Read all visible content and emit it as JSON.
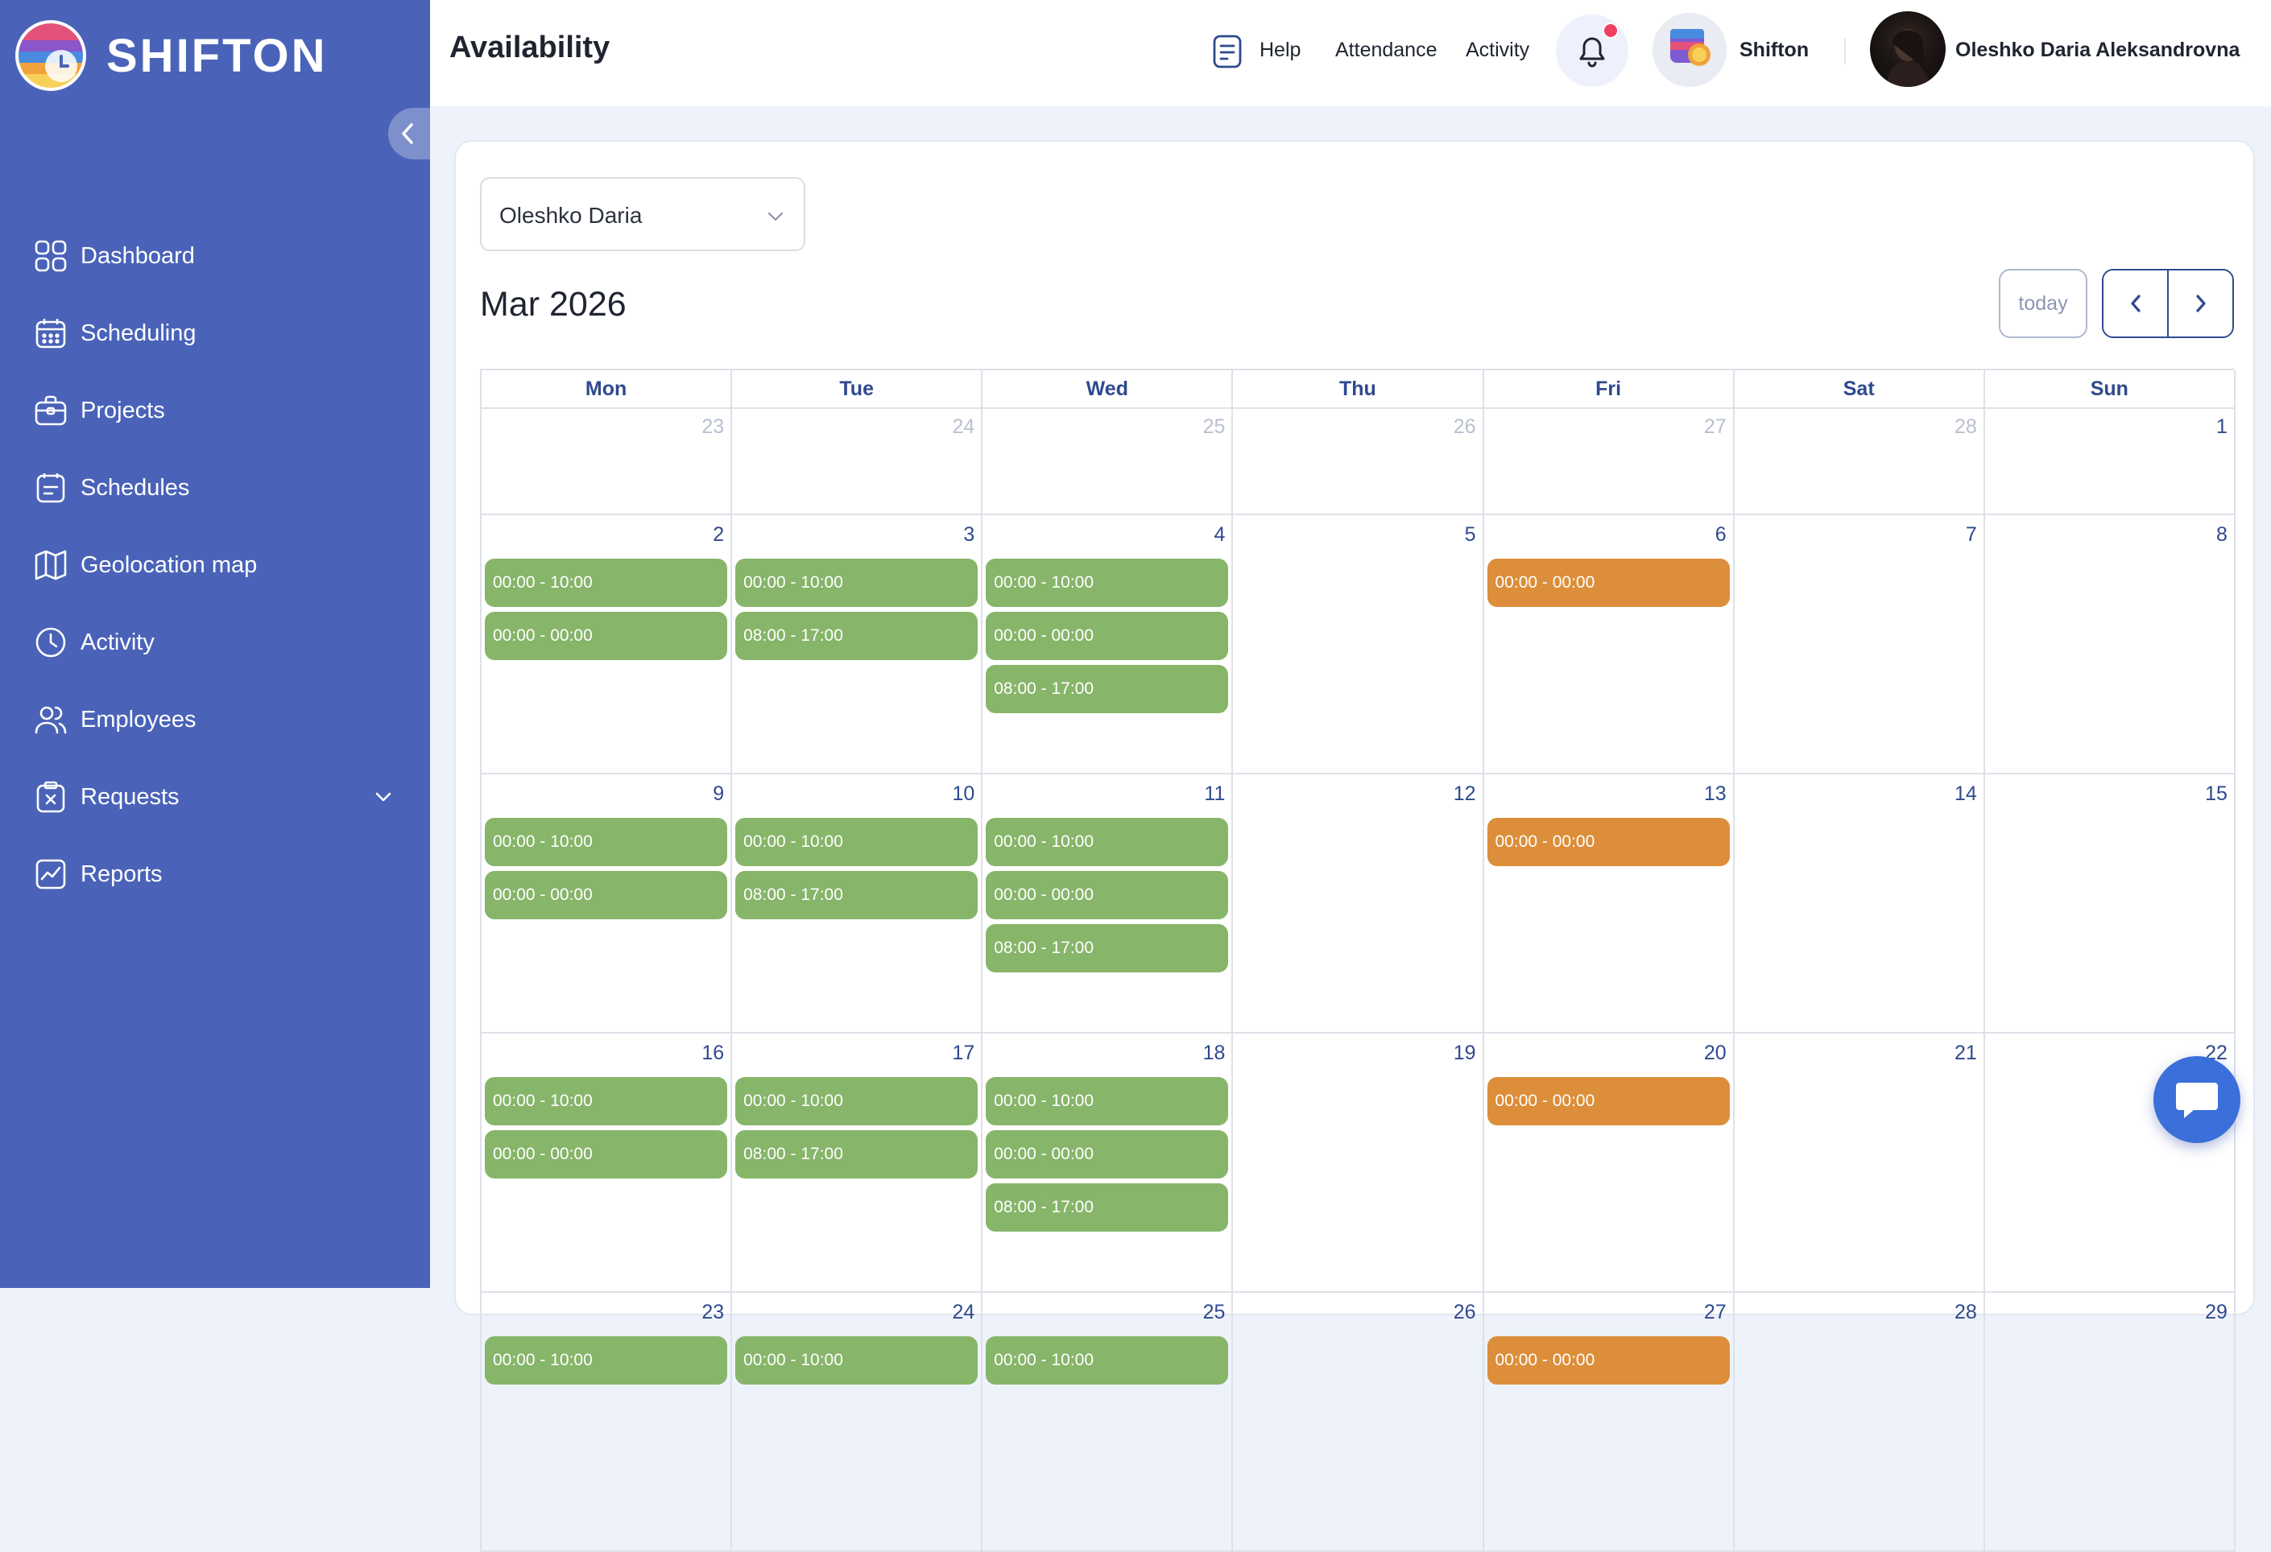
{
  "app": {
    "logo_text": "SHIFTON"
  },
  "colors": {
    "sidebar_bg": "#4a63b8",
    "accent": "#2e4a8e",
    "event_green": "#87b56a",
    "event_orange": "#dc8e3a",
    "notification_dot": "#ef4060"
  },
  "sidebar": {
    "items": [
      {
        "label": "Dashboard",
        "icon": "dashboard-icon"
      },
      {
        "label": "Scheduling",
        "icon": "calendar-grid-icon"
      },
      {
        "label": "Projects",
        "icon": "briefcase-icon"
      },
      {
        "label": "Schedules",
        "icon": "schedule-list-icon"
      },
      {
        "label": "Geolocation map",
        "icon": "map-icon"
      },
      {
        "label": "Activity",
        "icon": "clock-icon"
      },
      {
        "label": "Employees",
        "icon": "users-icon"
      },
      {
        "label": "Requests",
        "icon": "request-icon",
        "expandable": true
      },
      {
        "label": "Reports",
        "icon": "chart-icon"
      }
    ]
  },
  "header": {
    "title": "Availability",
    "help_label": "Help",
    "attendance_label": "Attendance",
    "activity_label": "Activity",
    "company_name": "Shifton",
    "user_name": "Oleshko Daria Aleksandrovna"
  },
  "toolbar": {
    "employee_selected": "Oleshko Daria",
    "month_title": "Mar 2026",
    "today_label": "today"
  },
  "calendar": {
    "day_names": [
      "Mon",
      "Tue",
      "Wed",
      "Thu",
      "Fri",
      "Sat",
      "Sun"
    ],
    "weeks": [
      {
        "days": [
          {
            "num": "23",
            "other": true,
            "events": []
          },
          {
            "num": "24",
            "other": true,
            "events": []
          },
          {
            "num": "25",
            "other": true,
            "events": []
          },
          {
            "num": "26",
            "other": true,
            "events": []
          },
          {
            "num": "27",
            "other": true,
            "events": []
          },
          {
            "num": "28",
            "other": true,
            "events": []
          },
          {
            "num": "1",
            "other": false,
            "events": []
          }
        ]
      },
      {
        "days": [
          {
            "num": "2",
            "events": [
              {
                "time": "00:00 - 10:00",
                "color": "green"
              },
              {
                "time": "00:00 - 00:00",
                "color": "green"
              }
            ]
          },
          {
            "num": "3",
            "events": [
              {
                "time": "00:00 - 10:00",
                "color": "green"
              },
              {
                "time": "08:00 - 17:00",
                "color": "green"
              }
            ]
          },
          {
            "num": "4",
            "events": [
              {
                "time": "00:00 - 10:00",
                "color": "green"
              },
              {
                "time": "00:00 - 00:00",
                "color": "green"
              },
              {
                "time": "08:00 - 17:00",
                "color": "green"
              }
            ]
          },
          {
            "num": "5",
            "events": []
          },
          {
            "num": "6",
            "events": [
              {
                "time": "00:00 - 00:00",
                "color": "orange"
              }
            ]
          },
          {
            "num": "7",
            "events": []
          },
          {
            "num": "8",
            "events": []
          }
        ]
      },
      {
        "days": [
          {
            "num": "9",
            "events": [
              {
                "time": "00:00 - 10:00",
                "color": "green"
              },
              {
                "time": "00:00 - 00:00",
                "color": "green"
              }
            ]
          },
          {
            "num": "10",
            "events": [
              {
                "time": "00:00 - 10:00",
                "color": "green"
              },
              {
                "time": "08:00 - 17:00",
                "color": "green"
              }
            ]
          },
          {
            "num": "11",
            "events": [
              {
                "time": "00:00 - 10:00",
                "color": "green"
              },
              {
                "time": "00:00 - 00:00",
                "color": "green"
              },
              {
                "time": "08:00 - 17:00",
                "color": "green"
              }
            ]
          },
          {
            "num": "12",
            "events": []
          },
          {
            "num": "13",
            "events": [
              {
                "time": "00:00 - 00:00",
                "color": "orange"
              }
            ]
          },
          {
            "num": "14",
            "events": []
          },
          {
            "num": "15",
            "events": []
          }
        ]
      },
      {
        "days": [
          {
            "num": "16",
            "events": [
              {
                "time": "00:00 - 10:00",
                "color": "green"
              },
              {
                "time": "00:00 - 00:00",
                "color": "green"
              }
            ]
          },
          {
            "num": "17",
            "events": [
              {
                "time": "00:00 - 10:00",
                "color": "green"
              },
              {
                "time": "08:00 - 17:00",
                "color": "green"
              }
            ]
          },
          {
            "num": "18",
            "events": [
              {
                "time": "00:00 - 10:00",
                "color": "green"
              },
              {
                "time": "00:00 - 00:00",
                "color": "green"
              },
              {
                "time": "08:00 - 17:00",
                "color": "green"
              }
            ]
          },
          {
            "num": "19",
            "events": []
          },
          {
            "num": "20",
            "events": [
              {
                "time": "00:00 - 00:00",
                "color": "orange"
              }
            ]
          },
          {
            "num": "21",
            "events": []
          },
          {
            "num": "22",
            "events": []
          }
        ]
      },
      {
        "days": [
          {
            "num": "23",
            "events": [
              {
                "time": "00:00 - 10:00",
                "color": "green"
              }
            ]
          },
          {
            "num": "24",
            "events": [
              {
                "time": "00:00 - 10:00",
                "color": "green"
              }
            ]
          },
          {
            "num": "25",
            "events": [
              {
                "time": "00:00 - 10:00",
                "color": "green"
              }
            ]
          },
          {
            "num": "26",
            "events": []
          },
          {
            "num": "27",
            "events": [
              {
                "time": "00:00 - 00:00",
                "color": "orange"
              }
            ]
          },
          {
            "num": "28",
            "events": []
          },
          {
            "num": "29",
            "events": []
          }
        ]
      }
    ]
  }
}
